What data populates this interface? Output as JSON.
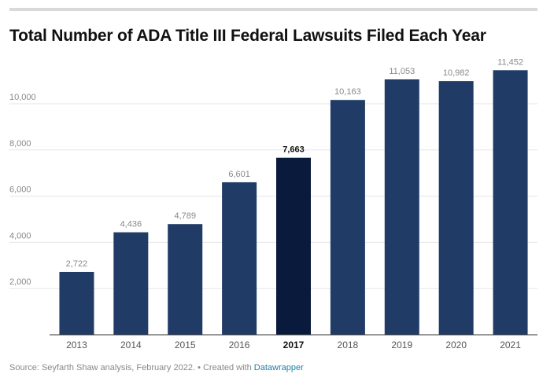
{
  "title": "Total Number of ADA Title III Federal Lawsuits Filed Each Year",
  "footer": {
    "source_text": "Source: Seyfarth Shaw analysis, February 2022. • Created with ",
    "link_text": "Datawrapper"
  },
  "colors": {
    "bar": "#1f3b66",
    "highlight_bar": "#0a1a3d",
    "label": "#888888",
    "highlight_label": "#111111",
    "grid": "#e5e5e5",
    "axis": "#333333",
    "link": "#1d81a2"
  },
  "chart_data": {
    "type": "bar",
    "categories": [
      "2013",
      "2014",
      "2015",
      "2016",
      "2017",
      "2018",
      "2019",
      "2020",
      "2021"
    ],
    "values": [
      2722,
      4436,
      4789,
      6601,
      7663,
      10163,
      11053,
      10982,
      11452
    ],
    "value_labels": [
      "2,722",
      "4,436",
      "4,789",
      "6,601",
      "7,663",
      "10,163",
      "11,053",
      "10,982",
      "11,452"
    ],
    "highlight": "2017",
    "title": "Total Number of ADA Title III Federal Lawsuits Filed Each Year",
    "xlabel": "",
    "ylabel": "",
    "ylim": [
      0,
      11500
    ],
    "yticks": [
      2000,
      4000,
      6000,
      8000,
      10000
    ],
    "ytick_labels": [
      "2,000",
      "4,000",
      "6,000",
      "8,000",
      "10,000"
    ],
    "grid": true,
    "legend": "none"
  }
}
